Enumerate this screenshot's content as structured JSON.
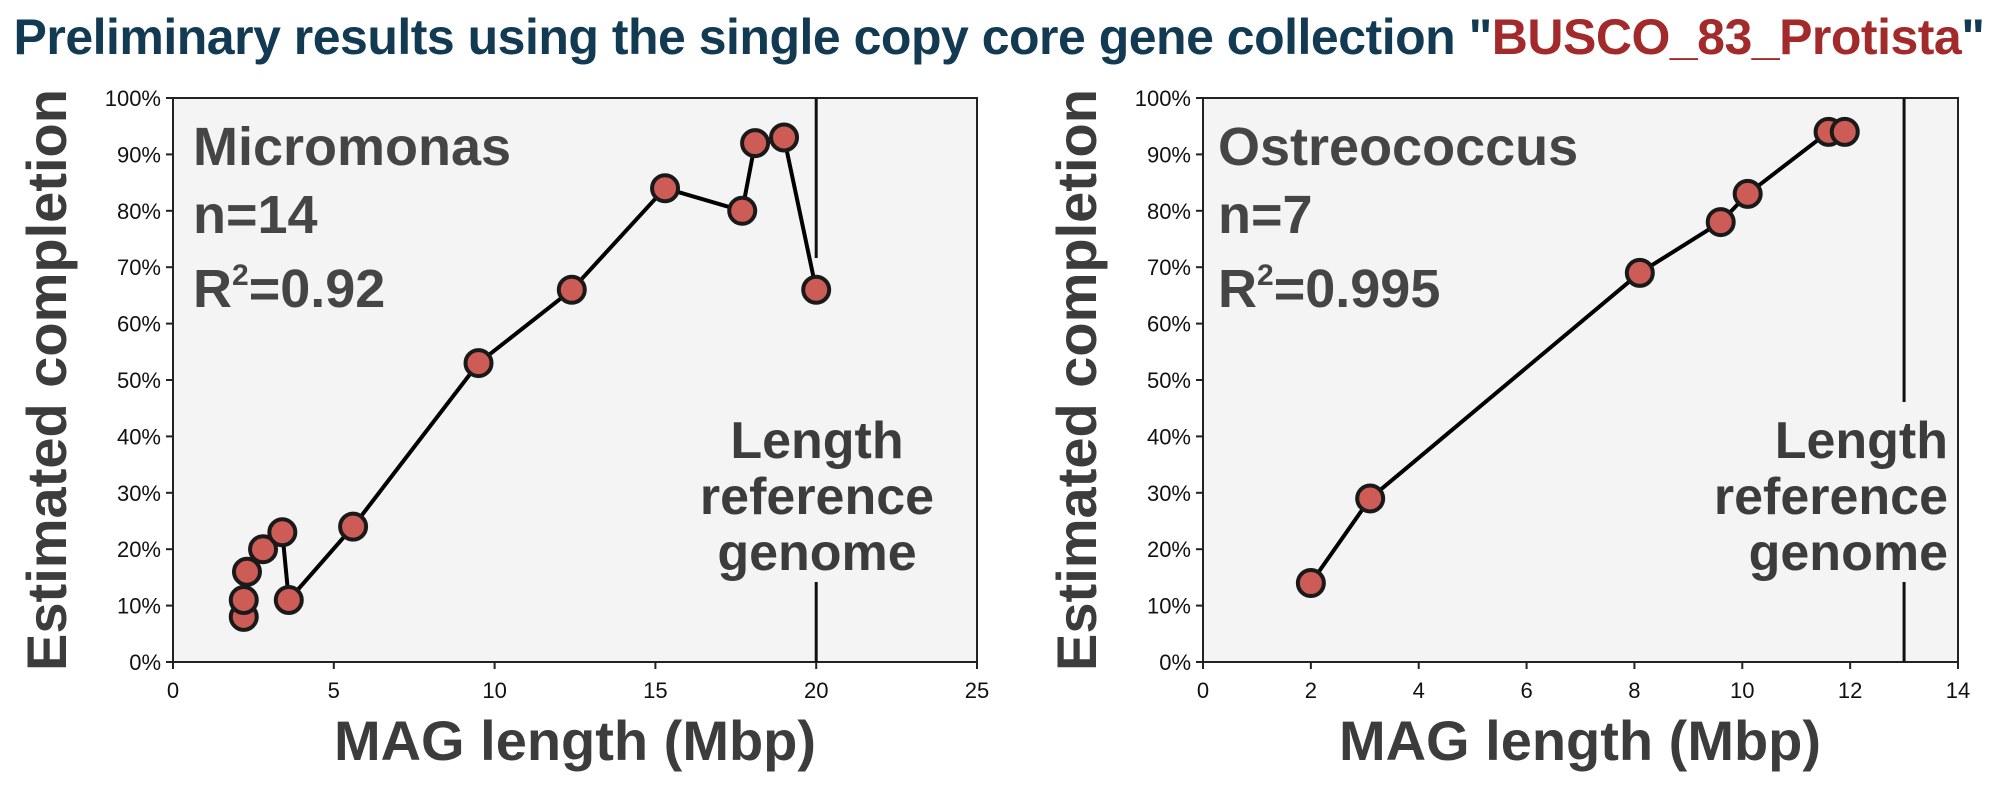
{
  "title": {
    "prefix": "Preliminary results using the single copy core gene collection \"",
    "highlight": "BUSCO_83_Protista",
    "suffix": "\""
  },
  "colors": {
    "title": "#123a52",
    "highlight": "#a32a2a",
    "marker_fill": "#cd5c56",
    "marker_stroke": "#1a1a1a",
    "plot_bg": "#f4f4f4",
    "text_gray": "#3c3c3c"
  },
  "chart_data": [
    {
      "type": "line",
      "xlabel": "MAG length (Mbp)",
      "ylabel": "Estimated completion",
      "xlim": [
        0,
        25
      ],
      "ylim": [
        0,
        100
      ],
      "x_ticks": [
        "0",
        "5",
        "10",
        "15",
        "20",
        "25"
      ],
      "y_ticks": [
        "0%",
        "10%",
        "20%",
        "30%",
        "40%",
        "50%",
        "60%",
        "70%",
        "80%",
        "90%",
        "100%"
      ],
      "annotation": {
        "name": "Micromonas",
        "n": "n=14",
        "r2_value": "=0.92"
      },
      "reference_line": {
        "x": 20,
        "label": [
          "Length",
          "reference",
          "genome"
        ]
      },
      "series": [
        {
          "x": [
            2.2,
            2.2,
            2.3,
            2.8,
            3.4,
            3.6,
            5.6,
            9.5,
            12.4,
            15.3,
            17.7,
            18.1,
            19.0,
            20.0
          ],
          "y": [
            8,
            11,
            16,
            20,
            23,
            11,
            24,
            53,
            66,
            84,
            80,
            92,
            93,
            66
          ]
        }
      ]
    },
    {
      "type": "line",
      "xlabel": "MAG length (Mbp)",
      "ylabel": "Estimated completion",
      "xlim": [
        0,
        14
      ],
      "ylim": [
        0,
        100
      ],
      "x_ticks": [
        "0",
        "2",
        "4",
        "6",
        "8",
        "10",
        "12",
        "14"
      ],
      "y_ticks": [
        "0%",
        "10%",
        "20%",
        "30%",
        "40%",
        "50%",
        "60%",
        "70%",
        "80%",
        "90%",
        "100%"
      ],
      "annotation": {
        "name": "Ostreococcus",
        "n": "n=7",
        "r2_value": "=0.995"
      },
      "reference_line": {
        "x": 13,
        "label": [
          "Length",
          "reference",
          "genome"
        ]
      },
      "series": [
        {
          "x": [
            2.0,
            3.1,
            8.1,
            9.6,
            10.1,
            11.6,
            11.9
          ],
          "y": [
            14,
            29,
            69,
            78,
            83,
            94,
            94
          ]
        }
      ]
    }
  ]
}
